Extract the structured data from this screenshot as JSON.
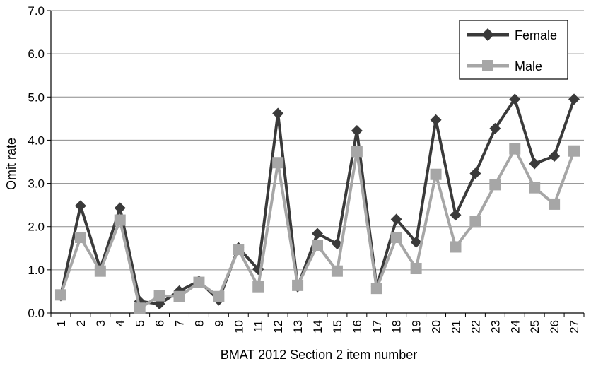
{
  "chart_data": {
    "type": "line",
    "title": "",
    "xlabel": "BMAT 2012 Section 2 item number",
    "ylabel": "Omit rate",
    "ylim": [
      0,
      7
    ],
    "yticks": [
      "0.0",
      "1.0",
      "2.0",
      "3.0",
      "4.0",
      "5.0",
      "6.0",
      "7.0"
    ],
    "grid": "horizontal",
    "legend_position": "top-right",
    "categories": [
      "1",
      "2",
      "3",
      "4",
      "5",
      "6",
      "7",
      "8",
      "9",
      "10",
      "11",
      "12",
      "13",
      "14",
      "15",
      "16",
      "17",
      "18",
      "19",
      "20",
      "21",
      "22",
      "23",
      "24",
      "25",
      "26",
      "27"
    ],
    "series": [
      {
        "name": "Female",
        "color": "#3a3a3a",
        "marker": "diamond",
        "values": [
          0.4,
          2.48,
          1.02,
          2.43,
          0.27,
          0.21,
          0.51,
          0.74,
          0.3,
          1.51,
          1.01,
          4.62,
          0.61,
          1.84,
          1.6,
          4.22,
          0.61,
          2.17,
          1.64,
          4.47,
          2.27,
          3.23,
          4.27,
          4.95,
          3.46,
          3.63,
          4.95
        ]
      },
      {
        "name": "Male",
        "color": "#a6a6a6",
        "marker": "square",
        "values": [
          0.42,
          1.75,
          0.97,
          2.15,
          0.11,
          0.4,
          0.38,
          0.71,
          0.38,
          1.47,
          0.61,
          3.48,
          0.64,
          1.57,
          0.97,
          3.74,
          0.57,
          1.75,
          1.03,
          3.21,
          1.53,
          2.12,
          2.97,
          3.8,
          2.9,
          2.52,
          3.75
        ]
      }
    ]
  }
}
